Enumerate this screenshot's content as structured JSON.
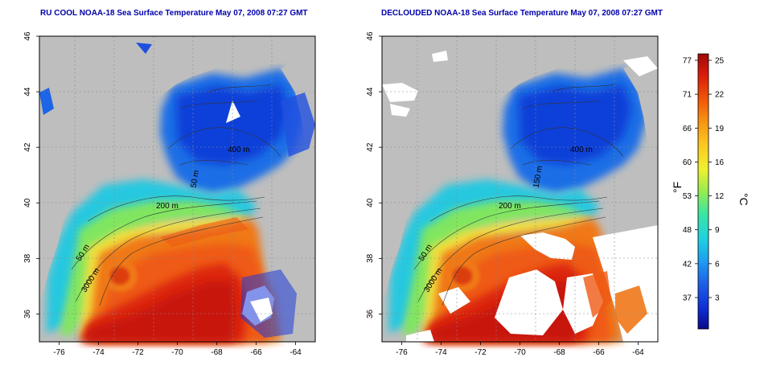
{
  "panels": [
    {
      "title": "RU COOL NOAA-18 Sea Surface Temperature May 07, 2008 07:27 GMT"
    },
    {
      "title": "DECLOUDED NOAA-18 Sea Surface Temperature May 07, 2008 07:27 GMT"
    }
  ],
  "axes": {
    "lon_ticks": [
      "-76",
      "-74",
      "-72",
      "-70",
      "-68",
      "-66",
      "-64"
    ],
    "lat_ticks": [
      "46",
      "44",
      "42",
      "40",
      "38",
      "36"
    ],
    "lon_range": [
      -77,
      -63
    ],
    "lat_range": [
      35,
      46
    ]
  },
  "contours": {
    "c400": "400 m",
    "c50": "50 m",
    "c200": "200 m",
    "c3000": "3000 m",
    "c150": "150 m"
  },
  "colorbar": {
    "fahrenheit_label": "°F",
    "celsius_label": "°C",
    "fahrenheit_ticks": [
      "77",
      "71",
      "66",
      "60",
      "53",
      "48",
      "42",
      "37"
    ],
    "celsius_ticks": [
      "25",
      "22",
      "19",
      "16",
      "12",
      "9",
      "6",
      "3"
    ],
    "colors": [
      "#0a0a8a",
      "#1030d8",
      "#1e64e6",
      "#1ea0f0",
      "#20d2e0",
      "#3ce6a0",
      "#96ec50",
      "#f0f030",
      "#fcc81e",
      "#f89614",
      "#f05a0a",
      "#dc1e0a",
      "#a00a0a"
    ]
  },
  "colors": {
    "land": "#bebebe",
    "cloud": "#ffffff",
    "contour": "#333333"
  }
}
